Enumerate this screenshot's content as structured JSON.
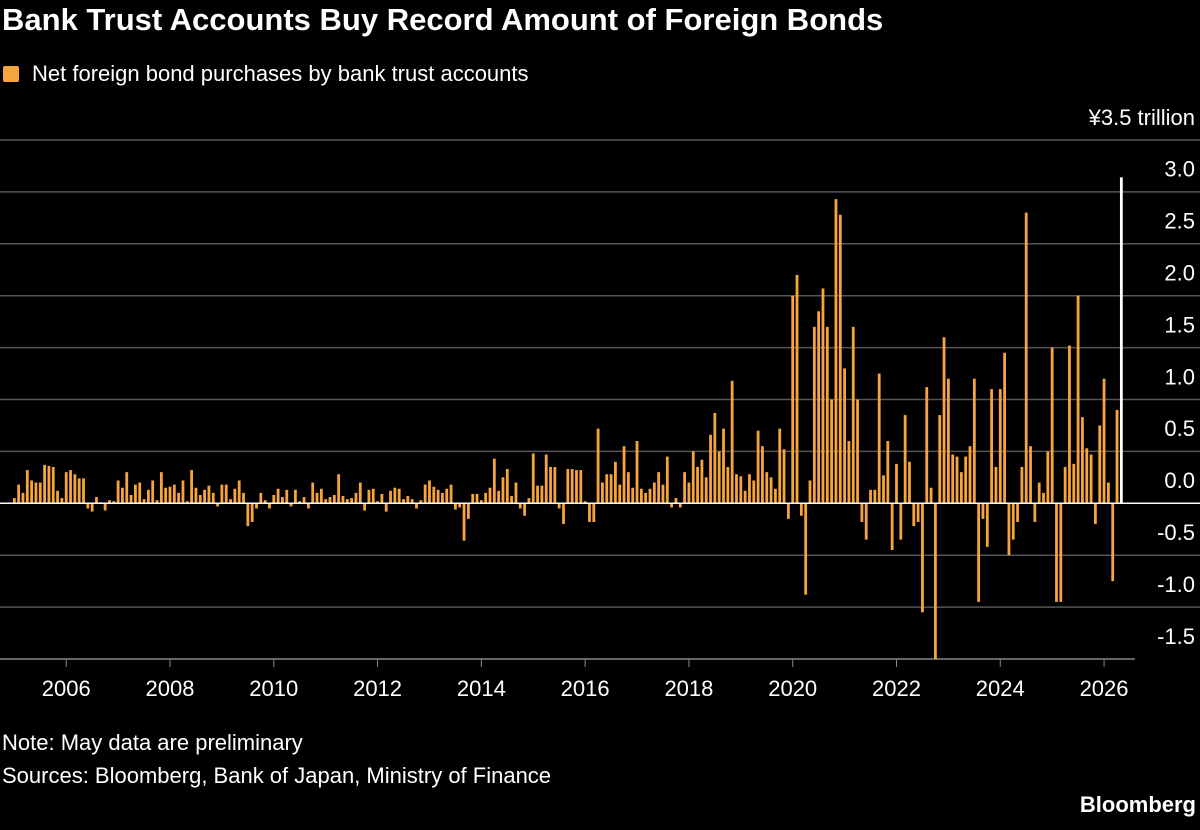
{
  "chart_data": {
    "type": "bar",
    "title": "Bank Trust Accounts Buy Record Amount of Foreign Bonds",
    "note": "Note: May data are preliminary",
    "source": "Sources: Bloomberg, Bank of Japan, Ministry of Finance",
    "brand": "Bloomberg",
    "x": [
      "2005-01",
      "2005-02",
      "2005-03",
      "2005-04",
      "2005-05",
      "2005-06",
      "2005-07",
      "2005-08",
      "2005-09",
      "2005-10",
      "2005-11",
      "2005-12",
      "2006-01",
      "2006-02",
      "2006-03",
      "2006-04",
      "2006-05",
      "2006-06",
      "2006-07",
      "2006-08",
      "2006-09",
      "2006-10",
      "2006-11",
      "2006-12",
      "2007-01",
      "2007-02",
      "2007-03",
      "2007-04",
      "2007-05",
      "2007-06",
      "2007-07",
      "2007-08",
      "2007-09",
      "2007-10",
      "2007-11",
      "2007-12",
      "2008-01",
      "2008-02",
      "2008-03",
      "2008-04",
      "2008-05",
      "2008-06",
      "2008-07",
      "2008-08",
      "2008-09",
      "2008-10",
      "2008-11",
      "2008-12",
      "2009-01",
      "2009-02",
      "2009-03",
      "2009-04",
      "2009-05",
      "2009-06",
      "2009-07",
      "2009-08",
      "2009-09",
      "2009-10",
      "2009-11",
      "2009-12",
      "2010-01",
      "2010-02",
      "2010-03",
      "2010-04",
      "2010-05",
      "2010-06",
      "2010-07",
      "2010-08",
      "2010-09",
      "2010-10",
      "2010-11",
      "2010-12",
      "2011-01",
      "2011-02",
      "2011-03",
      "2011-04",
      "2011-05",
      "2011-06",
      "2011-07",
      "2011-08",
      "2011-09",
      "2011-10",
      "2011-11",
      "2011-12",
      "2012-01",
      "2012-02",
      "2012-03",
      "2012-04",
      "2012-05",
      "2012-06",
      "2012-07",
      "2012-08",
      "2012-09",
      "2012-10",
      "2012-11",
      "2012-12",
      "2013-01",
      "2013-02",
      "2013-03",
      "2013-04",
      "2013-05",
      "2013-06",
      "2013-07",
      "2013-08",
      "2013-09",
      "2013-10",
      "2013-11",
      "2013-12",
      "2014-01",
      "2014-02",
      "2014-03",
      "2014-04",
      "2014-05",
      "2014-06",
      "2014-07",
      "2014-08",
      "2014-09",
      "2014-10",
      "2014-11",
      "2014-12",
      "2015-01",
      "2015-02",
      "2015-03",
      "2015-04",
      "2015-05",
      "2015-06",
      "2015-07",
      "2015-08",
      "2015-09",
      "2015-10",
      "2015-11",
      "2015-12",
      "2016-01",
      "2016-02",
      "2016-03",
      "2016-04",
      "2016-05",
      "2016-06",
      "2016-07",
      "2016-08",
      "2016-09",
      "2016-10",
      "2016-11",
      "2016-12",
      "2017-01",
      "2017-02",
      "2017-03",
      "2017-04",
      "2017-05",
      "2017-06",
      "2017-07",
      "2017-08",
      "2017-09",
      "2017-10",
      "2017-11",
      "2017-12",
      "2018-01",
      "2018-02",
      "2018-03",
      "2018-04",
      "2018-05",
      "2018-06",
      "2018-07",
      "2018-08",
      "2018-09",
      "2018-10",
      "2018-11",
      "2018-12",
      "2019-01",
      "2019-02",
      "2019-03",
      "2019-04",
      "2019-05",
      "2019-06",
      "2019-07",
      "2019-08",
      "2019-09",
      "2019-10",
      "2019-11",
      "2019-12",
      "2020-01",
      "2020-02",
      "2020-03",
      "2020-04",
      "2020-05",
      "2020-06",
      "2020-07",
      "2020-08",
      "2020-09",
      "2020-10",
      "2020-11",
      "2020-12",
      "2021-01",
      "2021-02",
      "2021-03",
      "2021-04",
      "2021-05",
      "2021-06",
      "2021-07",
      "2021-08",
      "2021-09",
      "2021-10",
      "2021-11",
      "2021-12",
      "2022-01",
      "2022-02",
      "2022-03",
      "2022-04",
      "2022-05",
      "2022-06",
      "2022-07",
      "2022-08",
      "2022-09",
      "2022-10",
      "2022-11",
      "2022-12",
      "2023-01",
      "2023-02",
      "2023-03",
      "2023-04",
      "2023-05",
      "2023-06",
      "2023-07",
      "2023-08",
      "2023-09",
      "2023-10",
      "2023-11",
      "2023-12",
      "2024-01",
      "2024-02",
      "2024-03",
      "2024-04",
      "2024-05",
      "2024-06",
      "2024-07",
      "2024-08",
      "2024-09",
      "2024-10",
      "2024-11",
      "2024-12",
      "2025-01",
      "2025-02",
      "2025-03",
      "2025-04",
      "2025-05",
      "2025-06",
      "2025-07",
      "2025-08",
      "2025-09",
      "2025-10",
      "2025-11",
      "2025-12",
      "2026-01",
      "2026-02",
      "2026-03",
      "2026-04",
      "2026-05"
    ],
    "series": [
      {
        "name": "Net foreign bond purchases by bank trust accounts",
        "color": "#f6a43c",
        "values": [
          0.05,
          0.18,
          0.1,
          0.32,
          0.22,
          0.2,
          0.2,
          0.37,
          0.36,
          0.35,
          0.12,
          0.05,
          0.3,
          0.32,
          0.28,
          0.24,
          0.24,
          -0.05,
          -0.08,
          0.06,
          0.01,
          -0.07,
          0.03,
          0.02,
          0.22,
          0.15,
          0.3,
          0.08,
          0.18,
          0.2,
          0.04,
          0.13,
          0.22,
          0.03,
          0.3,
          0.15,
          0.16,
          0.18,
          0.1,
          0.22,
          0.02,
          0.32,
          0.15,
          0.08,
          0.13,
          0.17,
          0.1,
          -0.03,
          0.18,
          0.18,
          0.04,
          0.14,
          0.22,
          0.1,
          -0.22,
          -0.18,
          -0.05,
          0.1,
          0.03,
          -0.05,
          0.08,
          0.14,
          0.06,
          0.13,
          -0.03,
          0.13,
          0.02,
          0.06,
          -0.05,
          0.2,
          0.1,
          0.14,
          0.04,
          0.06,
          0.08,
          0.28,
          0.07,
          0.04,
          0.05,
          0.1,
          0.2,
          -0.07,
          0.13,
          0.14,
          0.02,
          0.09,
          -0.08,
          0.12,
          0.15,
          0.14,
          0.04,
          0.07,
          0.04,
          -0.05,
          0.03,
          0.18,
          0.22,
          0.16,
          0.13,
          0.1,
          0.14,
          0.18,
          -0.06,
          -0.04,
          -0.36,
          -0.15,
          0.09,
          0.09,
          0.03,
          0.1,
          0.15,
          0.43,
          0.12,
          0.25,
          0.33,
          0.07,
          0.2,
          -0.05,
          -0.12,
          0.05,
          0.48,
          0.17,
          0.17,
          0.47,
          0.35,
          0.35,
          -0.05,
          -0.2,
          0.33,
          0.33,
          0.32,
          0.32,
          0.02,
          -0.18,
          -0.18,
          0.72,
          0.2,
          0.28,
          0.28,
          0.4,
          0.18,
          0.55,
          0.3,
          0.15,
          0.6,
          0.14,
          0.1,
          0.14,
          0.2,
          0.3,
          0.18,
          0.45,
          -0.04,
          0.05,
          -0.04,
          0.3,
          0.2,
          0.5,
          0.35,
          0.42,
          0.25,
          0.66,
          0.87,
          0.5,
          0.72,
          0.35,
          1.18,
          0.28,
          0.26,
          0.12,
          0.28,
          0.22,
          0.7,
          0.55,
          0.3,
          0.25,
          0.14,
          0.72,
          0.52,
          -0.15,
          2.0,
          2.2,
          -0.12,
          -0.88,
          0.22,
          1.7,
          1.85,
          2.07,
          1.7,
          1.0,
          2.93,
          2.78,
          1.3,
          0.6,
          1.7,
          1.0,
          -0.18,
          -0.35,
          0.13,
          0.13,
          1.25,
          0.27,
          0.6,
          -0.45,
          0.38,
          -0.35,
          0.85,
          0.4,
          -0.22,
          -0.18,
          -1.05,
          1.12,
          0.15,
          -1.5,
          0.85,
          1.6,
          1.2,
          0.47,
          0.45,
          0.3,
          0.45,
          0.55,
          1.2,
          -0.95,
          -0.15,
          -0.42,
          1.1,
          0.35,
          1.1,
          1.45,
          -0.5,
          -0.35,
          -0.18,
          0.35,
          2.8,
          0.55,
          -0.18,
          0.2,
          0.1,
          0.5,
          1.5,
          -0.95,
          -0.95,
          0.35,
          1.52,
          0.38,
          2.0,
          0.83,
          0.53,
          0.47,
          -0.2,
          0.75,
          1.2,
          0.2,
          -0.75,
          0.9,
          3.14
        ]
      }
    ],
    "last_bar_color": "#ffffff",
    "xlim": [
      "2004-12",
      "2026-07"
    ],
    "xticks": [
      "2006",
      "2008",
      "2010",
      "2012",
      "2014",
      "2016",
      "2018",
      "2020",
      "2022",
      "2024",
      "2026"
    ],
    "ylim": [
      -1.5,
      3.5
    ],
    "yticks": [
      {
        "value": 3.5,
        "label": "¥3.5 trillion"
      },
      {
        "value": 3,
        "label": "3.0"
      },
      2.5,
      {
        "value": 2,
        "label": "2.0"
      },
      1.5,
      {
        "value": 1,
        "label": "1.0"
      },
      0.5,
      {
        "value": 0,
        "label": "0.0"
      },
      -0.5,
      {
        "value": -1,
        "label": "-1.0"
      },
      -1.5
    ],
    "grid": true
  }
}
